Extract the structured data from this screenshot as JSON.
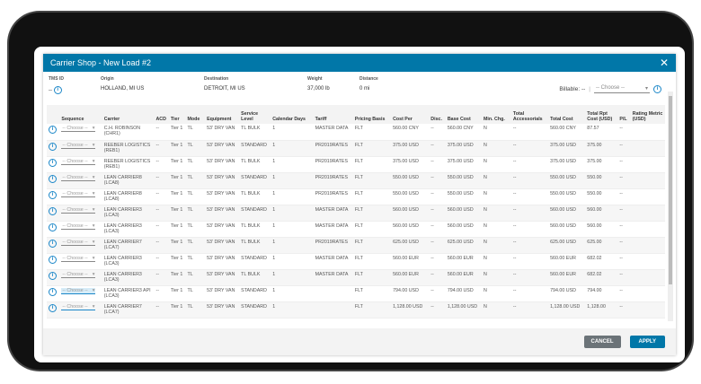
{
  "modal": {
    "title": "Carrier Shop - New Load #2",
    "close_icon": "close-x-icon"
  },
  "meta": {
    "tms_id": {
      "label": "TMS ID",
      "value": "--"
    },
    "origin": {
      "label": "Origin",
      "value": "HOLLAND, MI US"
    },
    "destination": {
      "label": "Destination",
      "value": "DETROIT, MI US"
    },
    "weight": {
      "label": "Weight",
      "value": "37,000 lb"
    },
    "distance": {
      "label": "Distance",
      "value": "0 mi"
    },
    "billable": {
      "label": "Billable: --",
      "placeholder": "-- Choose --"
    }
  },
  "columns": [
    "",
    "Sequence",
    "Carrier",
    "ACD",
    "Tier",
    "Mode",
    "Equipment",
    "Service Level",
    "Calendar Days",
    "Tariff",
    "Pricing Basis",
    "Cost Per",
    "Disc.",
    "Base Cost",
    "Min. Chg.",
    "Total Accessorials",
    "Total Cost",
    "Total Rpt Cost (USD)",
    "P/L",
    "Rating Metric (USD)"
  ],
  "sequence_placeholder": "-- Choose --",
  "rows": [
    [
      "C.H. ROBINSON (CHR1)",
      "--",
      "Tier 1",
      "TL",
      "53' DRY VAN",
      "TL BULK",
      "1",
      "MASTER DATA",
      "FLT",
      "560.00 CNY",
      "--",
      "560.00 CNY",
      "N",
      "--",
      "560.00 CNY",
      "87.57",
      "--",
      ""
    ],
    [
      "REEBER LOGISTICS (REB1)",
      "--",
      "Tier 1",
      "TL",
      "53' DRY VAN",
      "STANDARD",
      "1",
      "PR2019RATES",
      "FLT",
      "375.00 USD",
      "--",
      "375.00 USD",
      "N",
      "--",
      "375.00 USD",
      "375.00",
      "--",
      ""
    ],
    [
      "REEBER LOGISTICS (REB1)",
      "--",
      "Tier 1",
      "TL",
      "53' DRY VAN",
      "TL BULK",
      "1",
      "PR2019RATES",
      "FLT",
      "375.00 USD",
      "--",
      "375.00 USD",
      "N",
      "--",
      "375.00 USD",
      "375.00",
      "--",
      ""
    ],
    [
      "LEAN CARRIER8 (LCA8)",
      "--",
      "Tier 1",
      "TL",
      "53' DRY VAN",
      "STANDARD",
      "1",
      "PR2019RATES",
      "FLT",
      "550.00 USD",
      "--",
      "550.00 USD",
      "N",
      "--",
      "550.00 USD",
      "550.00",
      "--",
      ""
    ],
    [
      "LEAN CARRIER8 (LCA8)",
      "--",
      "Tier 1",
      "TL",
      "53' DRY VAN",
      "TL BULK",
      "1",
      "PR2019RATES",
      "FLT",
      "550.00 USD",
      "--",
      "550.00 USD",
      "N",
      "--",
      "550.00 USD",
      "550.00",
      "--",
      ""
    ],
    [
      "LEAN CARRIER3 (LCA3)",
      "--",
      "Tier 1",
      "TL",
      "53' DRY VAN",
      "STANDARD",
      "1",
      "MASTER DATA",
      "FLT",
      "560.00 USD",
      "--",
      "560.00 USD",
      "N",
      "--",
      "560.00 USD",
      "560.00",
      "--",
      ""
    ],
    [
      "LEAN CARRIER3 (LCA3)",
      "--",
      "Tier 1",
      "TL",
      "53' DRY VAN",
      "TL BULK",
      "1",
      "MASTER DATA",
      "FLT",
      "560.00 USD",
      "--",
      "560.00 USD",
      "N",
      "--",
      "560.00 USD",
      "560.00",
      "--",
      ""
    ],
    [
      "LEAN CARRIER7 (LCA7)",
      "--",
      "Tier 1",
      "TL",
      "53' DRY VAN",
      "TL BULK",
      "1",
      "PR2019RATES",
      "FLT",
      "625.00 USD",
      "--",
      "625.00 USD",
      "N",
      "--",
      "625.00 USD",
      "625.00",
      "--",
      ""
    ],
    [
      "LEAN CARRIER3 (LCA3)",
      "--",
      "Tier 1",
      "TL",
      "53' DRY VAN",
      "STANDARD",
      "1",
      "MASTER DATA",
      "FLT",
      "560.00 EUR",
      "--",
      "560.00 EUR",
      "N",
      "--",
      "560.00 EUR",
      "682.02",
      "--",
      ""
    ],
    [
      "LEAN CARRIER3 (LCA3)",
      "--",
      "Tier 1",
      "TL",
      "53' DRY VAN",
      "TL BULK",
      "1",
      "MASTER DATA",
      "FLT",
      "560.00 EUR",
      "--",
      "560.00 EUR",
      "N",
      "--",
      "560.00 EUR",
      "682.02",
      "--",
      ""
    ],
    [
      "LEAN CARRIER3 API (LCA3)",
      "--",
      "Tier 1",
      "TL",
      "53' DRY VAN",
      "STANDARD",
      "1",
      "",
      "FLT",
      "794.00 USD",
      "--",
      "794.00 USD",
      "N",
      "--",
      "794.00 USD",
      "794.00",
      "--",
      ""
    ],
    [
      "LEAN CARRIER7 (LCA7)",
      "--",
      "Tier 1",
      "TL",
      "53' DRY VAN",
      "STANDARD",
      "1",
      "",
      "FLT",
      "1,128.00 USD",
      "--",
      "1,128.00 USD",
      "N",
      "--",
      "1,128.00 USD",
      "1,128.00",
      "--",
      ""
    ]
  ],
  "footer": {
    "cancel": "CANCEL",
    "apply": "APPLY"
  },
  "colors": {
    "header": "#0177a8",
    "cancel": "#6b7378",
    "apply": "#0177a8"
  }
}
